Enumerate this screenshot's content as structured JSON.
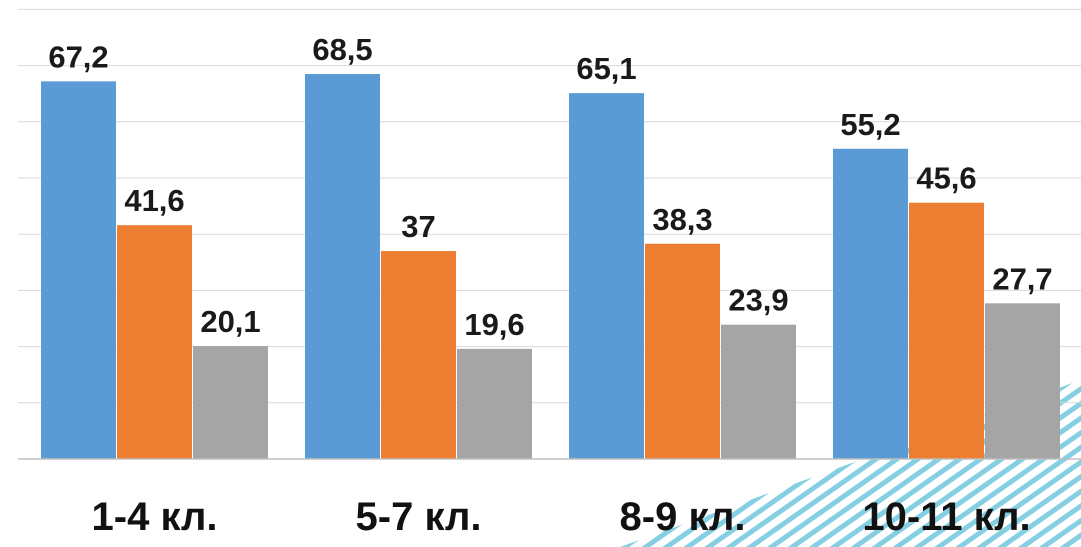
{
  "chart_data": {
    "type": "bar",
    "categories": [
      "1-4 кл.",
      "5-7 кл.",
      "8-9 кл.",
      "10-11 кл."
    ],
    "series": [
      {
        "values": [
          67.2,
          68.5,
          65.1,
          55.2
        ],
        "labels": [
          "67,2",
          "68,5",
          "65,1",
          "55,2"
        ],
        "color": "#5b9bd5"
      },
      {
        "values": [
          41.6,
          37,
          38.3,
          45.6
        ],
        "labels": [
          "41,6",
          "37",
          "38,3",
          "45,6"
        ],
        "color": "#ed7d31"
      },
      {
        "values": [
          20.1,
          19.6,
          23.9,
          27.7
        ],
        "labels": [
          "20,1",
          "19,6",
          "23,9",
          "27,7"
        ],
        "color": "#a5a5a5"
      }
    ],
    "ylim": [
      0,
      80
    ],
    "grid": true,
    "legend": "none"
  },
  "colors": {
    "gridline": "#d9d9d9",
    "axis": "#bfbfbf",
    "decoration_stripe": "#5bc0d8"
  }
}
